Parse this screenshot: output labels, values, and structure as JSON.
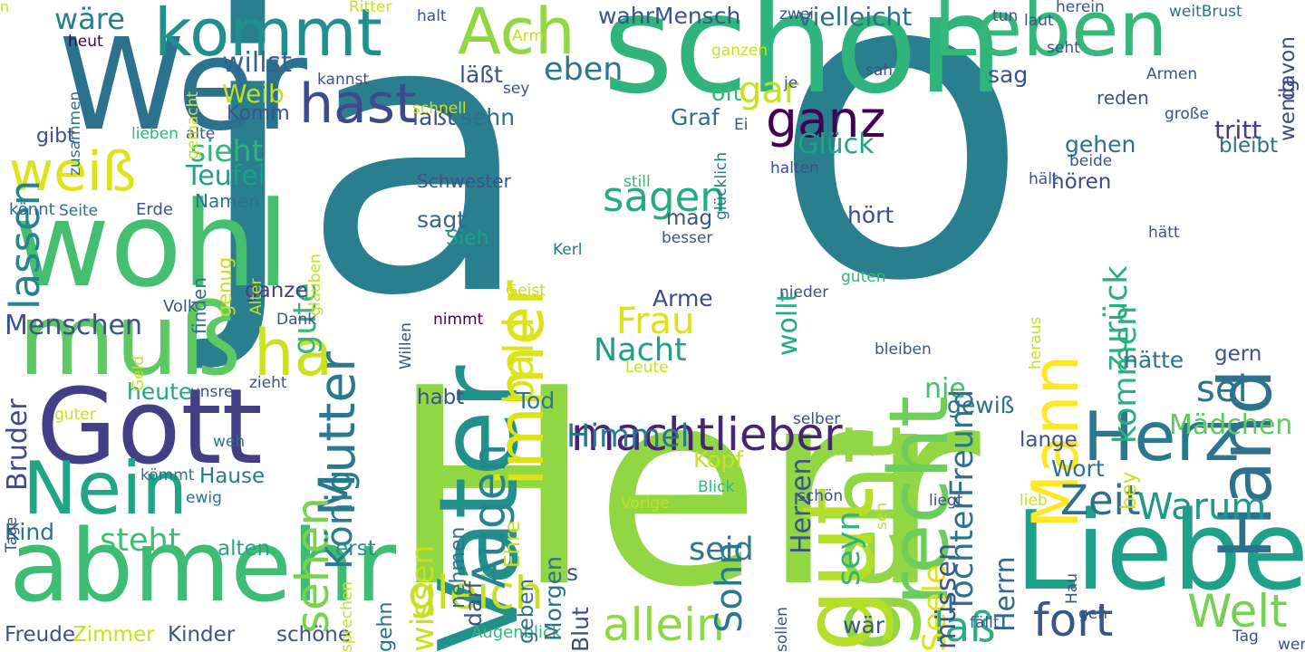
{
  "palette": {
    "dark_purple": "#440154",
    "indigo": "#3b528b",
    "blue": "#31688e",
    "teal": "#21918c",
    "green": "#35b779",
    "light_green": "#90d743",
    "yellow": "#c8e020"
  },
  "words": [
    {
      "text": "ja",
      "color": "#2a7f8f",
      "orientation": "horizontal"
    },
    {
      "text": "o",
      "color": "#2a7f8f",
      "orientation": "horizontal"
    },
    {
      "text": "Herr",
      "color": "#90d743",
      "orientation": "horizontal"
    },
    {
      "text": "schon",
      "color": "#2fb47c",
      "orientation": "horizontal"
    },
    {
      "text": "Wer",
      "color": "#2c728e",
      "orientation": "horizontal"
    },
    {
      "text": "wohl",
      "color": "#44bf70",
      "orientation": "horizontal"
    },
    {
      "text": "Gott",
      "color": "#433e85",
      "orientation": "horizontal"
    },
    {
      "text": "muß",
      "color": "#5ec962",
      "orientation": "horizontal"
    },
    {
      "text": "abmehr",
      "color": "#3dbc74",
      "orientation": "horizontal"
    },
    {
      "text": "Vater",
      "color": "#21918c",
      "orientation": "vertical"
    },
    {
      "text": "geht",
      "color": "#90d743",
      "orientation": "vertical"
    },
    {
      "text": "Leben",
      "color": "#35b779",
      "orientation": "horizontal"
    },
    {
      "text": "Liebe",
      "color": "#1fa088",
      "orientation": "horizontal"
    },
    {
      "text": "Herz",
      "color": "#2a788e",
      "orientation": "horizontal"
    },
    {
      "text": "Hand",
      "color": "#2c728e",
      "orientation": "vertical"
    },
    {
      "text": "Mann",
      "color": "#fde725",
      "orientation": "vertical"
    },
    {
      "text": "recht",
      "color": "#6ccd5a",
      "orientation": "vertical"
    },
    {
      "text": "gut",
      "color": "#b5de2b",
      "orientation": "vertical"
    },
    {
      "text": "kommt",
      "color": "#218f8d",
      "orientation": "horizontal"
    },
    {
      "text": "Nein",
      "color": "#21a685",
      "orientation": "horizontal"
    },
    {
      "text": "weiß",
      "color": "#dde318",
      "orientation": "horizontal"
    },
    {
      "text": "Ach",
      "color": "#90d743",
      "orientation": "horizontal"
    },
    {
      "text": "hast",
      "color": "#3e4a89",
      "orientation": "horizontal"
    },
    {
      "text": "ganz",
      "color": "#440154",
      "orientation": "horizontal"
    },
    {
      "text": "immer",
      "color": "#dde318",
      "orientation": "vertical"
    },
    {
      "text": "ha",
      "color": "#cae11f",
      "orientation": "horizontal"
    },
    {
      "text": "machtlieber",
      "color": "#482475",
      "orientation": "horizontal"
    },
    {
      "text": "gleich",
      "color": "#c8e020",
      "orientation": "horizontal"
    },
    {
      "text": "allein",
      "color": "#90d743",
      "orientation": "horizontal"
    },
    {
      "text": "Welt",
      "color": "#75d054",
      "orientation": "horizontal"
    },
    {
      "text": "fort",
      "color": "#39568c",
      "orientation": "horizontal"
    },
    {
      "text": "laß",
      "color": "#28ae80",
      "orientation": "horizontal"
    },
    {
      "text": "Zeit",
      "color": "#2d708e",
      "orientation": "horizontal"
    },
    {
      "text": "Warum",
      "color": "#1f988b",
      "orientation": "horizontal"
    },
    {
      "text": "sagen",
      "color": "#25ab82",
      "orientation": "horizontal"
    },
    {
      "text": "Himmel",
      "color": "#2a768e",
      "orientation": "horizontal"
    },
    {
      "text": "Frau",
      "color": "#dde318",
      "orientation": "horizontal"
    },
    {
      "text": "Nacht",
      "color": "#1f9e89",
      "orientation": "horizontal"
    },
    {
      "text": "Augen",
      "color": "#25848e",
      "orientation": "vertical"
    },
    {
      "text": "bald",
      "color": "#dde318",
      "orientation": "vertical"
    },
    {
      "text": "Mutter",
      "color": "#2a788e",
      "orientation": "vertical"
    },
    {
      "text": "sehen",
      "color": "#7ad151",
      "orientation": "vertical"
    },
    {
      "text": "König",
      "color": "#297b8e",
      "orientation": "vertical"
    },
    {
      "text": "Menschen",
      "color": "#3b528b",
      "orientation": "horizontal"
    },
    {
      "text": "lassen",
      "color": "#26828e",
      "orientation": "vertical"
    },
    {
      "text": "Glück",
      "color": "#20a386",
      "orientation": "horizontal"
    },
    {
      "text": "sieht",
      "color": "#2fb47c",
      "orientation": "horizontal"
    },
    {
      "text": "wäre",
      "color": "#287d8e",
      "orientation": "horizontal"
    },
    {
      "text": "willst",
      "color": "#33638d",
      "orientation": "horizontal"
    },
    {
      "text": "Weib",
      "color": "#c0df25",
      "orientation": "horizontal"
    },
    {
      "text": "Komm",
      "color": "#3b528b",
      "orientation": "horizontal"
    },
    {
      "text": "Teufel",
      "color": "#1fa188",
      "orientation": "horizontal"
    },
    {
      "text": "eben",
      "color": "#2a788e",
      "orientation": "horizontal"
    },
    {
      "text": "oft",
      "color": "#35b779",
      "orientation": "horizontal"
    },
    {
      "text": "gar",
      "color": "#c8e020",
      "orientation": "horizontal"
    },
    {
      "text": "vielleicht",
      "color": "#2d708e",
      "orientation": "horizontal"
    },
    {
      "text": "wahrMensch",
      "color": "#39568c",
      "orientation": "horizontal"
    },
    {
      "text": "sei",
      "color": "#2c728e",
      "orientation": "horizontal"
    },
    {
      "text": "nie",
      "color": "#44bf70",
      "orientation": "horizontal"
    },
    {
      "text": "Sohn",
      "color": "#2a788e",
      "orientation": "vertical"
    },
    {
      "text": "seyn",
      "color": "#2fb47c",
      "orientation": "vertical"
    },
    {
      "text": "zurück",
      "color": "#27ad81",
      "orientation": "vertical"
    },
    {
      "text": "kommen",
      "color": "#28ae80",
      "orientation": "vertical"
    },
    {
      "text": "Mädchen",
      "color": "#5ec962",
      "orientation": "horizontal"
    },
    {
      "text": "Wort",
      "color": "#2d708e",
      "orientation": "horizontal"
    },
    {
      "text": "Bruder",
      "color": "#3e4a89",
      "orientation": "vertical"
    },
    {
      "text": "heute",
      "color": "#22a785",
      "orientation": "horizontal"
    },
    {
      "text": "steht",
      "color": "#3dbc74",
      "orientation": "horizontal"
    },
    {
      "text": "Kind",
      "color": "#2c728e",
      "orientation": "horizontal"
    },
    {
      "text": "gute",
      "color": "#35b779",
      "orientation": "vertical"
    },
    {
      "text": "ganze",
      "color": "#433e85",
      "orientation": "horizontal"
    },
    {
      "text": "Hause",
      "color": "#2a788e",
      "orientation": "horizontal"
    },
    {
      "text": "seid",
      "color": "#2a788e",
      "orientation": "horizontal"
    },
    {
      "text": "erst",
      "color": "#21918c",
      "orientation": "horizontal"
    },
    {
      "text": "alten",
      "color": "#22a785",
      "orientation": "horizontal"
    },
    {
      "text": "wär",
      "color": "#3b528b",
      "orientation": "horizontal"
    },
    {
      "text": "schöne",
      "color": "#3b528b",
      "orientation": "horizontal"
    },
    {
      "text": "Kinder",
      "color": "#3b528b",
      "orientation": "horizontal"
    },
    {
      "text": "Zimmer",
      "color": "#c8e020",
      "orientation": "horizontal"
    },
    {
      "text": "Freude",
      "color": "#3b528b",
      "orientation": "horizontal"
    },
    {
      "text": "Augenblick",
      "color": "#35b779",
      "orientation": "horizontal"
    },
    {
      "text": "mag",
      "color": "#39568c",
      "orientation": "horizontal"
    },
    {
      "text": "Arme",
      "color": "#3e4a89",
      "orientation": "horizontal"
    },
    {
      "text": "sagt",
      "color": "#31688e",
      "orientation": "horizontal"
    },
    {
      "text": "Sieh",
      "color": "#1fa088",
      "orientation": "horizontal"
    },
    {
      "text": "habt",
      "color": "#3b528b",
      "orientation": "horizontal"
    },
    {
      "text": "Tod",
      "color": "#2a788e",
      "orientation": "horizontal"
    },
    {
      "text": "Kopf",
      "color": "#c8e020",
      "orientation": "horizontal"
    },
    {
      "text": "Herzen",
      "color": "#3b528b",
      "orientation": "vertical"
    },
    {
      "text": "TochterFreund",
      "color": "#2c728e",
      "orientation": "vertical"
    },
    {
      "text": "wollt",
      "color": "#25ab82",
      "orientation": "vertical"
    },
    {
      "text": "hört",
      "color": "#3e4a89",
      "orientation": "horizontal"
    },
    {
      "text": "gewiß",
      "color": "#2d708e",
      "orientation": "horizontal"
    },
    {
      "text": "lange",
      "color": "#3b528b",
      "orientation": "horizontal"
    },
    {
      "text": "bey",
      "color": "#c8e020",
      "orientation": "vertical"
    },
    {
      "text": "tritt",
      "color": "#433e85",
      "orientation": "horizontal"
    },
    {
      "text": "bleibt",
      "color": "#2c728e",
      "orientation": "horizontal"
    },
    {
      "text": "gehen",
      "color": "#2d708e",
      "orientation": "horizontal"
    },
    {
      "text": "hören",
      "color": "#3e4a89",
      "orientation": "horizontal"
    },
    {
      "text": "sag",
      "color": "#3b528b",
      "orientation": "horizontal"
    },
    {
      "text": "wenig",
      "color": "#3e4a89",
      "orientation": "vertical"
    },
    {
      "text": "davon",
      "color": "#3e4a89",
      "orientation": "vertical"
    },
    {
      "text": "hätte",
      "color": "#2c728e",
      "orientation": "horizontal"
    },
    {
      "text": "gern",
      "color": "#3b528b",
      "orientation": "horizontal"
    },
    {
      "text": "Seele",
      "color": "#dde318",
      "orientation": "vertical"
    },
    {
      "text": "müssen",
      "color": "#3b528b",
      "orientation": "vertical"
    },
    {
      "text": "Herrn",
      "color": "#31688e",
      "orientation": "vertical"
    },
    {
      "text": "wissen",
      "color": "#c8e020",
      "orientation": "vertical"
    },
    {
      "text": "nehmen",
      "color": "#2c728e",
      "orientation": "vertical"
    },
    {
      "text": "darf",
      "color": "#3b528b",
      "orientation": "vertical"
    },
    {
      "text": "geben",
      "color": "#2c728e",
      "orientation": "vertical"
    },
    {
      "text": "Morgen",
      "color": "#2d708e",
      "orientation": "vertical"
    },
    {
      "text": "Blut",
      "color": "#3e4a89",
      "orientation": "vertical"
    },
    {
      "text": "s",
      "color": "#3b528b",
      "orientation": "horizontal"
    },
    {
      "text": "gehn",
      "color": "#2c728e",
      "orientation": "vertical"
    },
    {
      "text": "Ehre",
      "color": "#c8e020",
      "orientation": "vertical"
    },
    {
      "text": "lieben",
      "color": "#2fb47c",
      "orientation": "horizontal"
    },
    {
      "text": "alte",
      "color": "#3b528b",
      "orientation": "horizontal"
    },
    {
      "text": "gibt",
      "color": "#3b528b",
      "orientation": "horizontal"
    },
    {
      "text": "laßt",
      "color": "#3b528b",
      "orientation": "horizontal"
    },
    {
      "text": "sehn",
      "color": "#2d708e",
      "orientation": "horizontal"
    },
    {
      "text": "Graf",
      "color": "#2d708e",
      "orientation": "horizontal"
    },
    {
      "text": "läßt",
      "color": "#3b528b",
      "orientation": "horizontal"
    },
    {
      "text": "Schwester",
      "color": "#3b528b",
      "orientation": "horizontal"
    },
    {
      "text": "Namen",
      "color": "#2c728e",
      "orientation": "horizontal"
    },
    {
      "text": "Seite",
      "color": "#2c728e",
      "orientation": "horizontal"
    },
    {
      "text": "Erde",
      "color": "#3b528b",
      "orientation": "horizontal"
    },
    {
      "text": "könnt",
      "color": "#31688e",
      "orientation": "horizontal"
    },
    {
      "text": "genug",
      "color": "#c8e020",
      "orientation": "vertical"
    },
    {
      "text": "finden",
      "color": "#2c728e",
      "orientation": "vertical"
    },
    {
      "text": "Alter",
      "color": "#c8e020",
      "orientation": "vertical"
    },
    {
      "text": "glauben",
      "color": "#c8e020",
      "orientation": "vertical"
    },
    {
      "text": "Volk",
      "color": "#3b528b",
      "orientation": "horizontal"
    },
    {
      "text": "Dank",
      "color": "#3b528b",
      "orientation": "horizontal"
    },
    {
      "text": "Geld",
      "color": "#c8e020",
      "orientation": "vertical"
    },
    {
      "text": "unsre",
      "color": "#3b528b",
      "orientation": "horizontal"
    },
    {
      "text": "zieht",
      "color": "#3b528b",
      "orientation": "horizontal"
    },
    {
      "text": "guter",
      "color": "#c8e020",
      "orientation": "horizontal"
    },
    {
      "text": "weh",
      "color": "#2c728e",
      "orientation": "horizontal"
    },
    {
      "text": "kömmt",
      "color": "#2c728e",
      "orientation": "horizontal"
    },
    {
      "text": "ewig",
      "color": "#2c728e",
      "orientation": "horizontal"
    },
    {
      "text": "Tage",
      "color": "#3b528b",
      "orientation": "vertical"
    },
    {
      "text": "Ritter",
      "color": "#c8e020",
      "orientation": "horizontal"
    },
    {
      "text": "Arm",
      "color": "#c8e020",
      "orientation": "horizontal"
    },
    {
      "text": "heut",
      "color": "#440154",
      "orientation": "horizontal"
    },
    {
      "text": "zusammen",
      "color": "#2c728e",
      "orientation": "vertical"
    },
    {
      "text": "gemacht",
      "color": "#c8e020",
      "orientation": "vertical"
    },
    {
      "text": "kannst",
      "color": "#3b528b",
      "orientation": "horizontal"
    },
    {
      "text": "sey",
      "color": "#3b528b",
      "orientation": "horizontal"
    },
    {
      "text": "schnell",
      "color": "#c8e020",
      "orientation": "horizontal"
    },
    {
      "text": "halt",
      "color": "#3b528b",
      "orientation": "horizontal"
    },
    {
      "text": "zwei",
      "color": "#3b528b",
      "orientation": "horizontal"
    },
    {
      "text": "tun",
      "color": "#3b528b",
      "orientation": "horizontal"
    },
    {
      "text": "laut",
      "color": "#3b528b",
      "orientation": "horizontal"
    },
    {
      "text": "weitBrust",
      "color": "#2c728e",
      "orientation": "horizontal"
    },
    {
      "text": "ganzen",
      "color": "#c8e020",
      "orientation": "horizontal"
    },
    {
      "text": "seht",
      "color": "#3b528b",
      "orientation": "horizontal"
    },
    {
      "text": "glücklich",
      "color": "#2c728e",
      "orientation": "vertical"
    },
    {
      "text": "sah",
      "color": "#3b528b",
      "orientation": "horizontal"
    },
    {
      "text": "je",
      "color": "#3b528b",
      "orientation": "horizontal"
    },
    {
      "text": "Armen",
      "color": "#3b528b",
      "orientation": "horizontal"
    },
    {
      "text": "große",
      "color": "#3b528b",
      "orientation": "horizontal"
    },
    {
      "text": "Ei",
      "color": "#3b528b",
      "orientation": "horizontal"
    },
    {
      "text": "herein",
      "color": "#3b528b",
      "orientation": "horizontal"
    },
    {
      "text": "beide",
      "color": "#3b528b",
      "orientation": "horizontal"
    },
    {
      "text": "still",
      "color": "#35b779",
      "orientation": "horizontal"
    },
    {
      "text": "halten",
      "color": "#3b528b",
      "orientation": "horizontal"
    },
    {
      "text": "hält",
      "color": "#3b528b",
      "orientation": "horizontal"
    },
    {
      "text": "hätt",
      "color": "#3b528b",
      "orientation": "horizontal"
    },
    {
      "text": "besser",
      "color": "#3b528b",
      "orientation": "horizontal"
    },
    {
      "text": "Kerl",
      "color": "#2c728e",
      "orientation": "horizontal"
    },
    {
      "text": "guten",
      "color": "#35b779",
      "orientation": "horizontal"
    },
    {
      "text": "Willen",
      "color": "#3b528b",
      "orientation": "vertical"
    },
    {
      "text": "Geist",
      "color": "#c8e020",
      "orientation": "horizontal"
    },
    {
      "text": "nimmt",
      "color": "#440154",
      "orientation": "horizontal"
    },
    {
      "text": "nieder",
      "color": "#3b528b",
      "orientation": "horizontal"
    },
    {
      "text": "heraus",
      "color": "#c8e020",
      "orientation": "vertical"
    },
    {
      "text": "Leute",
      "color": "#c8e020",
      "orientation": "horizontal"
    },
    {
      "text": "bleiben",
      "color": "#3b528b",
      "orientation": "horizontal"
    },
    {
      "text": "selber",
      "color": "#3b528b",
      "orientation": "horizontal"
    },
    {
      "text": "Vorige",
      "color": "#c8e020",
      "orientation": "horizontal"
    },
    {
      "text": "Blick",
      "color": "#35b779",
      "orientation": "horizontal"
    },
    {
      "text": "schön",
      "color": "#3b528b",
      "orientation": "horizontal"
    },
    {
      "text": "seh",
      "color": "#c8e020",
      "orientation": "vertical"
    },
    {
      "text": "liegt",
      "color": "#3b528b",
      "orientation": "horizontal"
    },
    {
      "text": "lieb",
      "color": "#c8e020",
      "orientation": "horizontal"
    },
    {
      "text": "Hau",
      "color": "#3b528b",
      "orientation": "vertical"
    },
    {
      "text": "sprechen",
      "color": "#c8e020",
      "orientation": "vertical"
    },
    {
      "text": "sollen",
      "color": "#3b528b",
      "orientation": "vertical"
    },
    {
      "text": "fällt",
      "color": "#3b528b",
      "orientation": "horizontal"
    },
    {
      "text": "geh",
      "color": "#3b528b",
      "orientation": "horizontal"
    },
    {
      "text": "Tag",
      "color": "#3b528b",
      "orientation": "horizontal"
    },
    {
      "text": "werd",
      "color": "#3b528b",
      "orientation": "horizontal"
    },
    {
      "text": "reden",
      "color": "#3b528b",
      "orientation": "horizontal"
    },
    {
      "text": "n",
      "color": "#c8e020",
      "orientation": "horizontal"
    }
  ]
}
